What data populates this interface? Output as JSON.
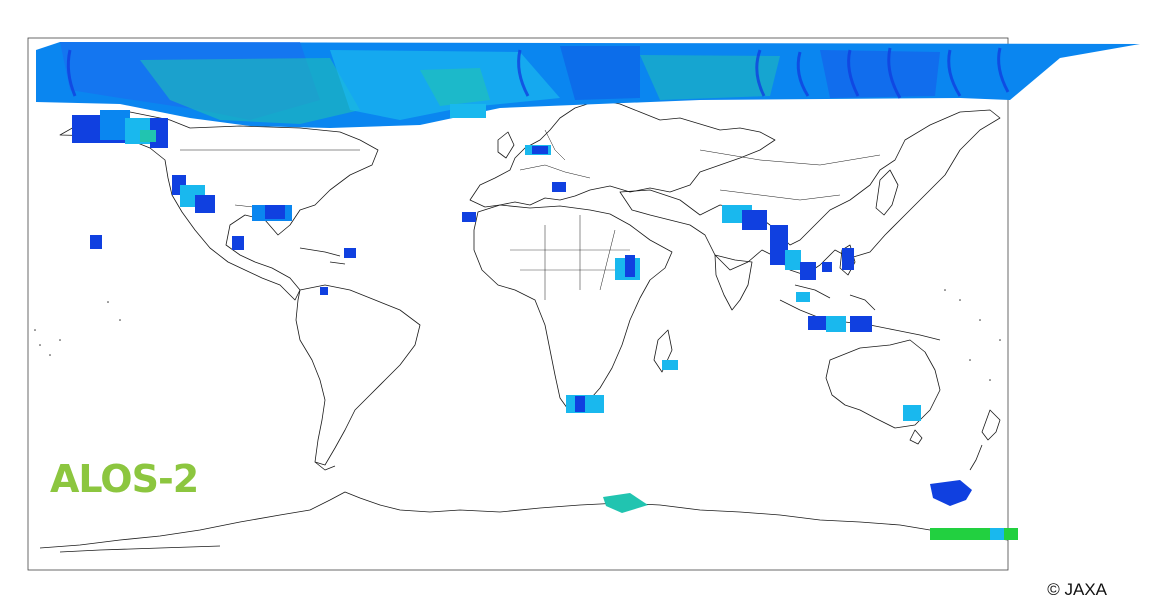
{
  "logo": {
    "text": "ALOS-2",
    "color": "#8cc63f"
  },
  "credit": "© JAXA",
  "colors": {
    "coastline": "#1a1a1a",
    "coverage_dark": "#1040e0",
    "coverage_mid": "#0a86f0",
    "coverage_light": "#19b8ee",
    "coverage_teal": "#21c4b0",
    "coverage_green": "#22d040"
  },
  "coverage_regions": [
    "arctic-band",
    "alaska",
    "western-north-america",
    "gulf-coast",
    "central-america",
    "caribbean",
    "northern-south-america",
    "hawaii",
    "iceland",
    "northern-europe",
    "mediterranean",
    "canary-islands",
    "east-africa",
    "madagascar",
    "southern-africa",
    "south-asia",
    "southeast-asia",
    "philippines",
    "indonesia",
    "southeast-australia",
    "antarctic-peninsula",
    "east-antarctica-ross",
    "east-antarctica-wilkes"
  ]
}
